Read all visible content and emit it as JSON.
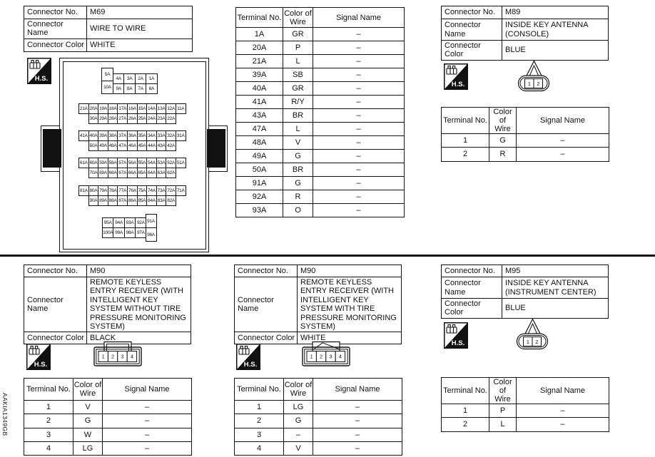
{
  "page": {
    "figure_id": "AAKIA1349GB",
    "hs_label": "H.S."
  },
  "labels": {
    "connector_no": "Connector No.",
    "connector_name": "Connector Name",
    "connector_color": "Connector Color",
    "terminal_no": "Terminal No.",
    "color_of_wire_line1": "Color of",
    "color_of_wire_line2": "Wire",
    "signal_name": "Signal Name"
  },
  "connectors": {
    "m69": {
      "no": "M69",
      "name": "WIRE TO WIRE",
      "color": "WHITE",
      "terminals": [
        [
          "1A",
          "GR",
          "–"
        ],
        [
          "20A",
          "P",
          "–"
        ],
        [
          "21A",
          "L",
          "–"
        ],
        [
          "39A",
          "SB",
          "–"
        ],
        [
          "40A",
          "GR",
          "–"
        ],
        [
          "41A",
          "R/Y",
          "–"
        ],
        [
          "43A",
          "BR",
          "–"
        ],
        [
          "47A",
          "L",
          "–"
        ],
        [
          "48A",
          "V",
          "–"
        ],
        [
          "49A",
          "G",
          "–"
        ],
        [
          "50A",
          "BR",
          "–"
        ],
        [
          "91A",
          "G",
          "–"
        ],
        [
          "92A",
          "R",
          "–"
        ],
        [
          "93A",
          "O",
          "–"
        ]
      ],
      "pins": {
        "b1_left": [
          "5A",
          "10A"
        ],
        "b1_row1": [
          "4A",
          "3A",
          "2A",
          "1A"
        ],
        "b1_row2": [
          "9A",
          "8A",
          "7A",
          "6A"
        ],
        "b2_row1": [
          "21A",
          "20A",
          "19A",
          "18A",
          "17A",
          "16A",
          "15A",
          "14A",
          "13A",
          "12A",
          "11A"
        ],
        "b2_row2": [
          "30A",
          "29A",
          "28A",
          "27A",
          "26A",
          "25A",
          "24A",
          "23A",
          "22A"
        ],
        "b3_row1": [
          "41A",
          "40A",
          "39A",
          "38A",
          "37A",
          "36A",
          "35A",
          "34A",
          "33A",
          "32A",
          "31A"
        ],
        "b3_row2": [
          "50A",
          "49A",
          "48A",
          "47A",
          "46A",
          "45A",
          "44A",
          "43A",
          "42A"
        ],
        "b4_row1": [
          "61A",
          "60A",
          "59A",
          "58A",
          "57A",
          "56A",
          "55A",
          "54A",
          "53A",
          "52A",
          "51A"
        ],
        "b4_row2": [
          "70A",
          "69A",
          "68A",
          "67A",
          "66A",
          "65A",
          "64A",
          "63A",
          "62A"
        ],
        "b5_row1": [
          "81A",
          "80A",
          "79A",
          "78A",
          "77A",
          "76A",
          "75A",
          "74A",
          "73A",
          "72A",
          "71A"
        ],
        "b5_row2": [
          "90A",
          "89A",
          "88A",
          "87A",
          "86A",
          "85A",
          "84A",
          "83A",
          "82A"
        ],
        "b6_row1": [
          "95A",
          "94A",
          "93A",
          "92A"
        ],
        "b6_row2": [
          "100A",
          "99A",
          "98A",
          "97A"
        ],
        "b6_right": [
          "91A",
          "96A"
        ]
      }
    },
    "m89": {
      "no": "M89",
      "name": "INSIDE KEY ANTENNA (CONSOLE)",
      "color": "BLUE",
      "pins": [
        "1",
        "2"
      ],
      "terminals": [
        [
          "1",
          "G",
          "–"
        ],
        [
          "2",
          "R",
          "–"
        ]
      ]
    },
    "m90a": {
      "no": "M90",
      "name": "REMOTE KEYLESS ENTRY RECEIVER (WITH INTELLIGENT KEY SYSTEM WITHOUT TIRE PRESSURE MONITORING SYSTEM)",
      "color": "BLACK",
      "pins": [
        "1",
        "2",
        "3",
        "4"
      ],
      "terminals": [
        [
          "1",
          "V",
          "–"
        ],
        [
          "2",
          "G",
          "–"
        ],
        [
          "3",
          "W",
          "–"
        ],
        [
          "4",
          "LG",
          "–"
        ]
      ]
    },
    "m90b": {
      "no": "M90",
      "name": "REMOTE KEYLESS ENTRY RECEIVER (WITH INTELLIGENT KEY SYSTEM WITH TIRE PRESSURE MONITORING SYSTEM)",
      "color": "WHITE",
      "pins": [
        "1",
        "2",
        "3",
        "4"
      ],
      "terminals": [
        [
          "1",
          "LG",
          "–"
        ],
        [
          "2",
          "G",
          "–"
        ],
        [
          "3",
          "–",
          "–"
        ],
        [
          "4",
          "V",
          "–"
        ]
      ]
    },
    "m95": {
      "no": "M95",
      "name": "INSIDE KEY ANTENNA (INSTRUMENT CENTER)",
      "color": "BLUE",
      "pins": [
        "1",
        "2"
      ],
      "terminals": [
        [
          "1",
          "P",
          "–"
        ],
        [
          "2",
          "L",
          "–"
        ]
      ]
    }
  }
}
